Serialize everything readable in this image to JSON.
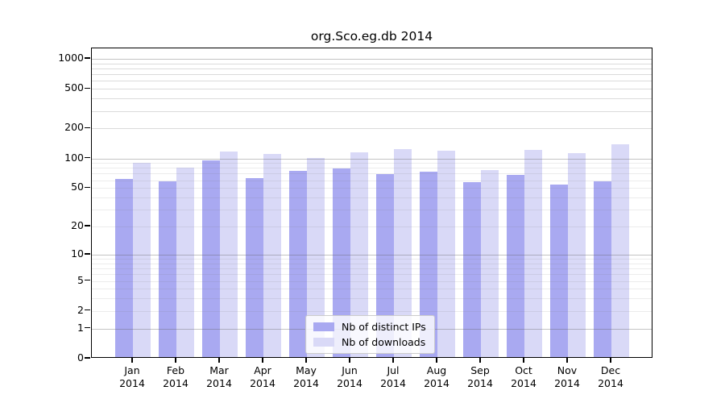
{
  "title": "org.Sco.eg.db 2014",
  "chart_data": {
    "type": "bar",
    "title": "org.Sco.eg.db 2014",
    "categories": [
      "Jan",
      "Feb",
      "Mar",
      "Apr",
      "May",
      "Jun",
      "Jul",
      "Aug",
      "Sep",
      "Oct",
      "Nov",
      "Dec"
    ],
    "category_year": "2014",
    "series": [
      {
        "name": "Nb of distinct IPs",
        "color": "#a9a9f1",
        "values": [
          60,
          56,
          92,
          61,
          72,
          76,
          67,
          70,
          55,
          66,
          52,
          56
        ]
      },
      {
        "name": "Nb of downloads",
        "color": "#d9d9f7",
        "values": [
          87,
          77,
          114,
          106,
          98,
          110,
          120,
          115,
          74,
          117,
          108,
          133
        ]
      }
    ],
    "yscale": "log1p",
    "yticks": [
      0,
      1,
      2,
      5,
      10,
      20,
      50,
      100,
      200,
      500,
      1000
    ],
    "ylim": [
      0,
      1280
    ],
    "xlabel": "",
    "ylabel": "",
    "grid": "horizontal, minor lines at 2-9 per decade",
    "legend_position": "inside bottom-center",
    "colors": {
      "grid_major": "rgba(100,100,100,0.38)",
      "grid_minor": "rgba(120,120,120,0.14)",
      "axis": "#000000",
      "background": "#ffffff"
    }
  }
}
